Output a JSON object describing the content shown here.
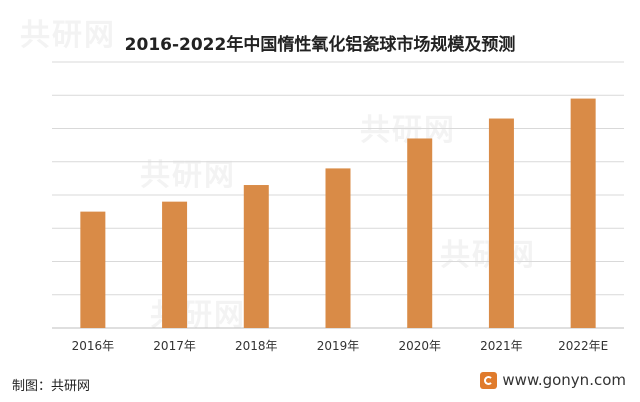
{
  "chart_data": {
    "type": "bar",
    "title": "2016-2022年中国惰性氧化铝瓷球市场规模及预测",
    "categories": [
      "2016年",
      "2017年",
      "2018年",
      "2019年",
      "2020年",
      "2021年",
      "2022年E"
    ],
    "values": [
      3.5,
      3.8,
      4.3,
      4.8,
      5.7,
      6.3,
      6.9
    ],
    "xlabel": "",
    "ylabel": "",
    "ylim": [
      0,
      8
    ],
    "grid": true,
    "bar_color": "#d98b47",
    "grid_color": "#d9d9d9"
  },
  "footer": {
    "source": "制图：共研网",
    "website": "www.gonyn.com"
  },
  "watermark": {
    "text": "共研网"
  },
  "colors": {
    "logo": "#e07b2c"
  }
}
